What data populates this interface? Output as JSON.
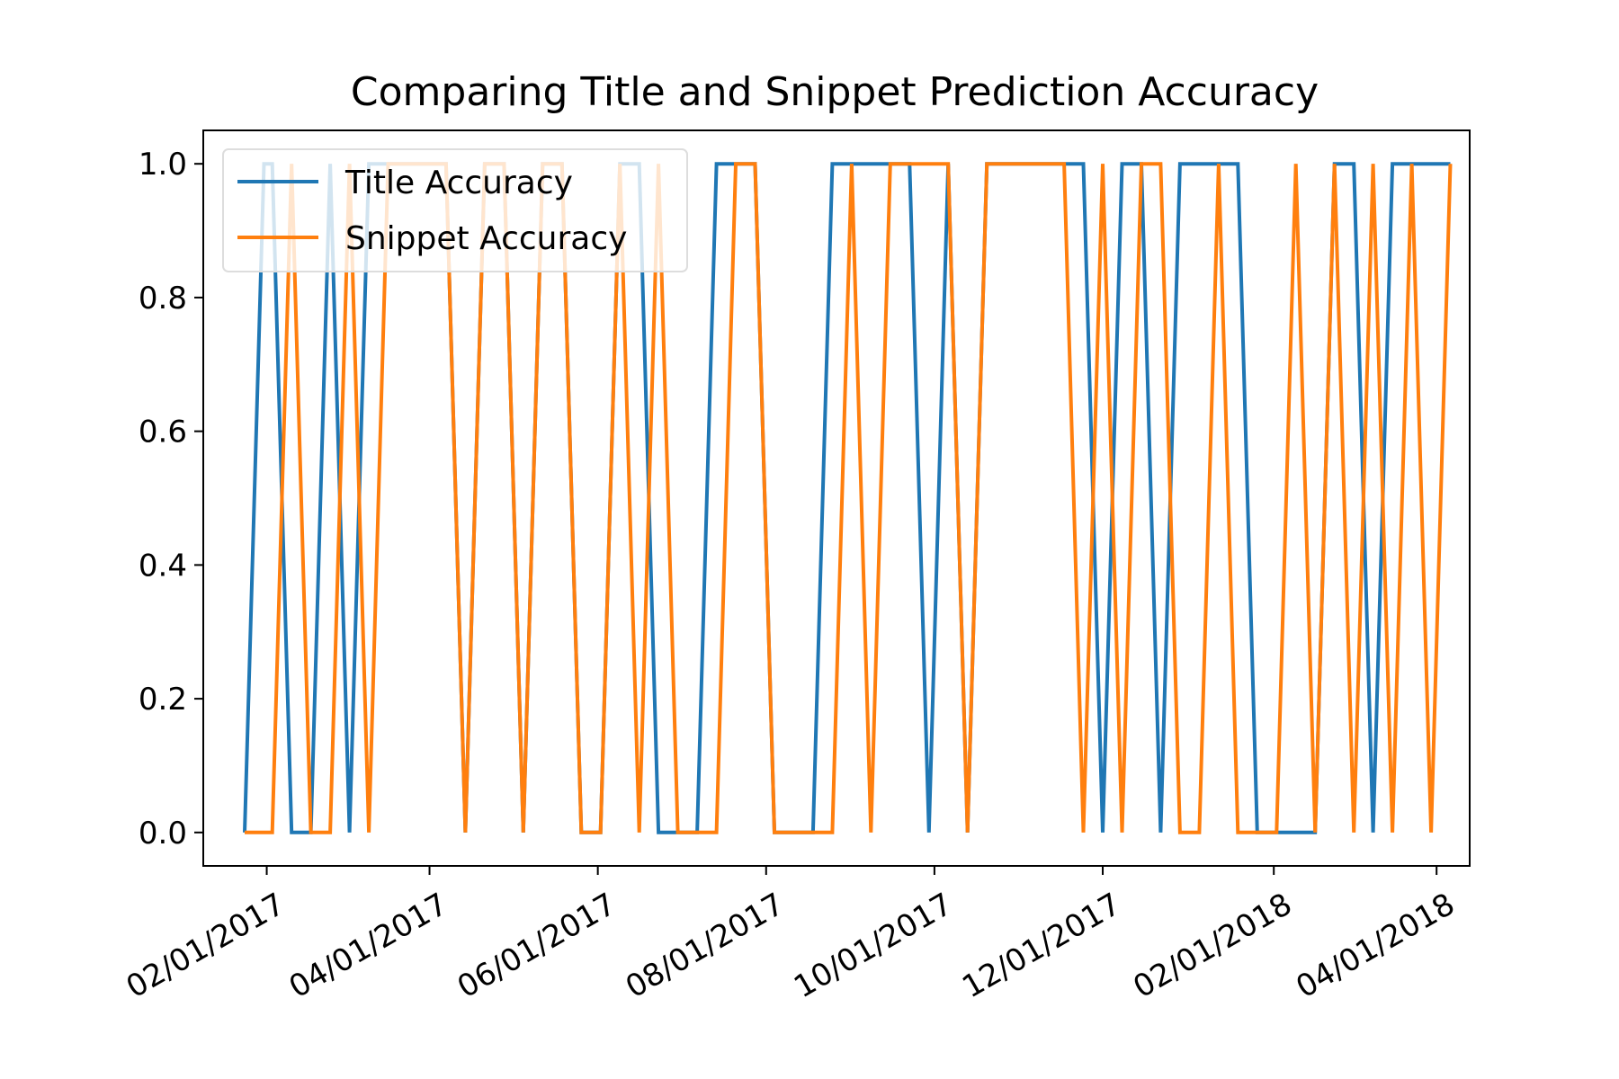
{
  "chart_data": {
    "type": "line",
    "title": "Comparing Title and Snippet Prediction Accuracy",
    "xlabel": "",
    "ylabel": "",
    "xlim": [
      "2017-01-09",
      "2018-04-13"
    ],
    "ylim": [
      -0.05,
      1.05
    ],
    "x_ticks": [
      "2017-02-01",
      "2017-04-01",
      "2017-06-01",
      "2017-08-01",
      "2017-10-01",
      "2017-12-01",
      "2018-02-01",
      "2018-04-01"
    ],
    "x_tick_labels": [
      "02/01/2017",
      "04/01/2017",
      "06/01/2017",
      "08/01/2017",
      "10/01/2017",
      "12/01/2017",
      "02/01/2018",
      "04/01/2018"
    ],
    "y_ticks": [
      0.0,
      0.2,
      0.4,
      0.6,
      0.8,
      1.0
    ],
    "y_tick_labels": [
      "0.0",
      "0.2",
      "0.4",
      "0.6",
      "0.8",
      "1.0"
    ],
    "grid": false,
    "legend": "upper-left",
    "x": [
      "2017-01-24",
      "2017-01-31",
      "2017-02-03",
      "2017-02-10",
      "2017-02-17",
      "2017-02-24",
      "2017-03-03",
      "2017-03-10",
      "2017-03-17",
      "2017-03-24",
      "2017-03-31",
      "2017-04-07",
      "2017-04-14",
      "2017-04-21",
      "2017-04-28",
      "2017-05-05",
      "2017-05-12",
      "2017-05-19",
      "2017-05-26",
      "2017-06-02",
      "2017-06-09",
      "2017-06-16",
      "2017-06-23",
      "2017-06-30",
      "2017-07-07",
      "2017-07-14",
      "2017-07-21",
      "2017-07-28",
      "2017-08-04",
      "2017-08-11",
      "2017-08-18",
      "2017-08-25",
      "2017-09-01",
      "2017-09-08",
      "2017-09-15",
      "2017-09-22",
      "2017-09-29",
      "2017-10-06",
      "2017-10-13",
      "2017-10-20",
      "2017-10-27",
      "2017-11-03",
      "2017-11-10",
      "2017-11-17",
      "2017-11-24",
      "2017-12-01",
      "2017-12-08",
      "2017-12-15",
      "2017-12-22",
      "2017-12-29",
      "2018-01-05",
      "2018-01-12",
      "2018-01-19",
      "2018-01-26",
      "2018-02-02",
      "2018-02-09",
      "2018-02-16",
      "2018-02-23",
      "2018-03-02",
      "2018-03-09",
      "2018-03-16",
      "2018-03-23",
      "2018-03-30",
      "2018-04-06"
    ],
    "series": [
      {
        "name": "Title Accuracy",
        "color": "#1f77b4",
        "values": [
          0,
          1,
          1,
          0,
          0,
          1,
          0,
          1,
          1,
          1,
          1,
          1,
          0,
          1,
          1,
          0,
          1,
          1,
          0,
          0,
          1,
          1,
          0,
          0,
          0,
          1,
          1,
          1,
          0,
          0,
          0,
          1,
          1,
          1,
          1,
          1,
          0,
          1,
          0,
          1,
          1,
          1,
          1,
          1,
          1,
          0,
          1,
          1,
          0,
          1,
          1,
          1,
          1,
          0,
          0,
          0,
          0,
          1,
          1,
          0,
          1,
          1,
          1,
          1
        ]
      },
      {
        "name": "Snippet Accuracy",
        "color": "#ff7f0e",
        "values": [
          0,
          0,
          0,
          1,
          0,
          0,
          1,
          0,
          1,
          1,
          1,
          1,
          0,
          1,
          1,
          0,
          1,
          1,
          0,
          0,
          1,
          0,
          1,
          0,
          0,
          0,
          1,
          1,
          0,
          0,
          0,
          0,
          1,
          0,
          1,
          1,
          1,
          1,
          0,
          1,
          1,
          1,
          1,
          1,
          0,
          1,
          0,
          1,
          1,
          0,
          0,
          1,
          0,
          0,
          0,
          1,
          0,
          1,
          0,
          1,
          0,
          1,
          0,
          1
        ]
      }
    ]
  }
}
